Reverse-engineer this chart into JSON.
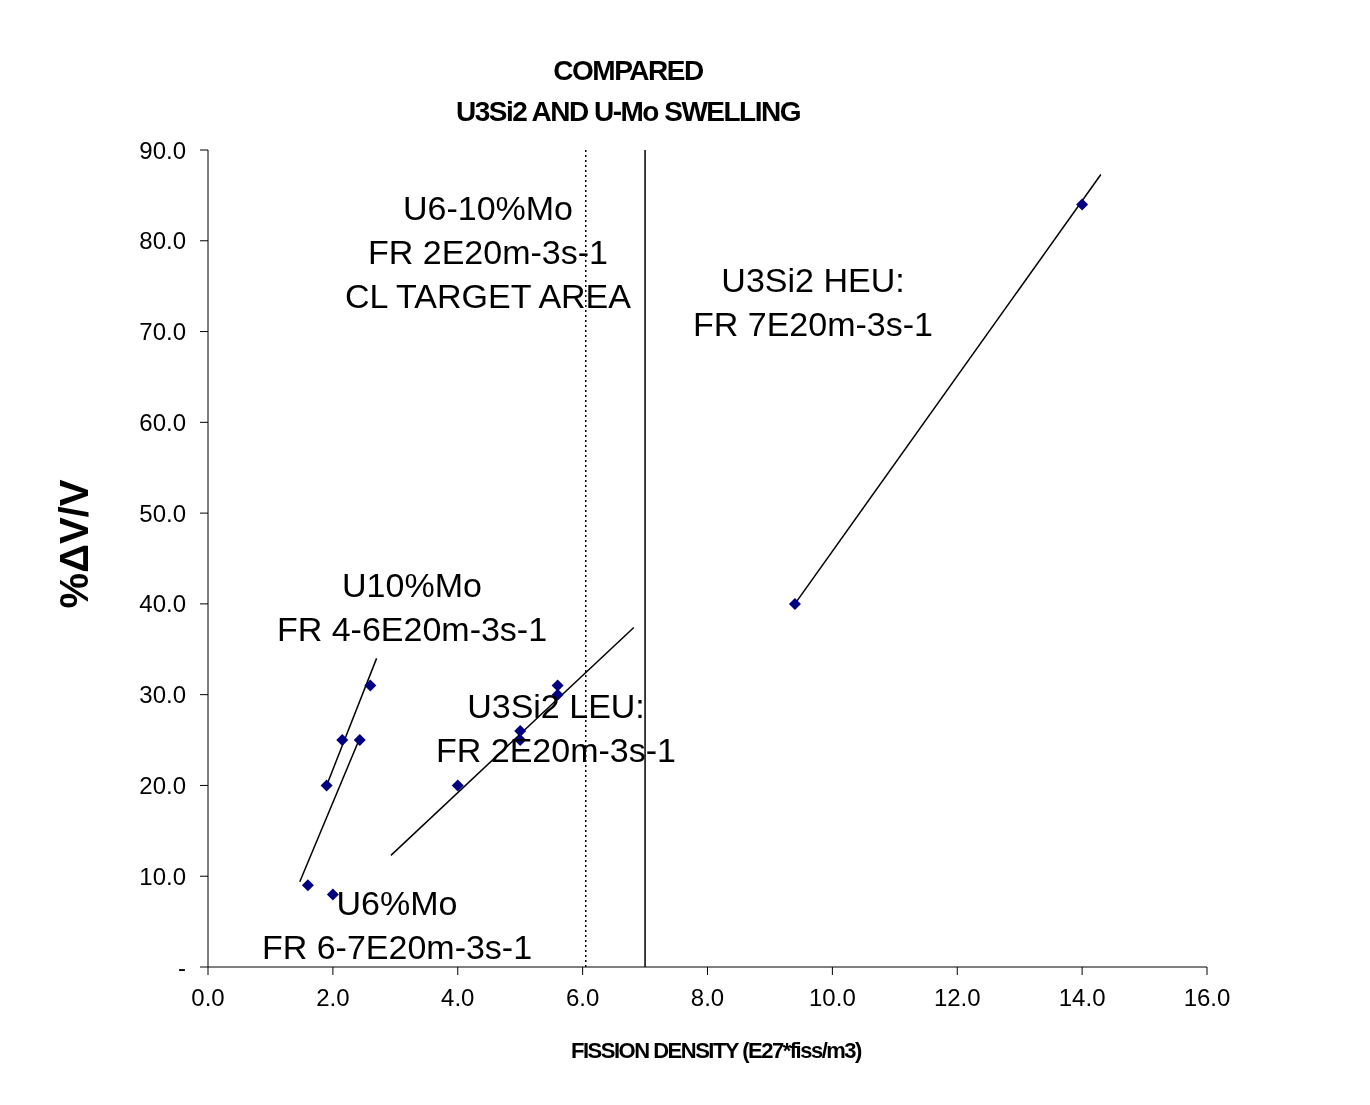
{
  "chart_data": {
    "type": "scatter",
    "title": "COMPARED",
    "subtitle": "U3Si2 AND U-Mo SWELLING",
    "xlabel": "FISSION DENSITY (E27*fiss/m3)",
    "ylabel": "%ΔV/V",
    "xlim": [
      0,
      16
    ],
    "xticks": [
      {
        "value": 0,
        "label": "0.0"
      },
      {
        "value": 2,
        "label": "2.0"
      },
      {
        "value": 4,
        "label": "4.0"
      },
      {
        "value": 6,
        "label": "6.0"
      },
      {
        "value": 8,
        "label": "8.0"
      },
      {
        "value": 10,
        "label": "10.0"
      },
      {
        "value": 12,
        "label": "12.0"
      },
      {
        "value": 14,
        "label": "14.0"
      },
      {
        "value": 16,
        "label": "16.0"
      }
    ],
    "ylim": [
      0,
      90
    ],
    "yticks": [
      {
        "value": 0,
        "label": "-"
      },
      {
        "value": 10,
        "label": "10.0"
      },
      {
        "value": 20,
        "label": "20.0"
      },
      {
        "value": 30,
        "label": "30.0"
      },
      {
        "value": 40,
        "label": "40.0"
      },
      {
        "value": 50,
        "label": "50.0"
      },
      {
        "value": 60,
        "label": "60.0"
      },
      {
        "value": 70,
        "label": "70.0"
      },
      {
        "value": 80,
        "label": "80.0"
      },
      {
        "value": 90,
        "label": "90.0"
      }
    ],
    "grid": false,
    "legend": false,
    "series": [
      {
        "type": "scatter",
        "color": "#000080",
        "marker": "diamond",
        "x": [
          1.6,
          2.0,
          1.9,
          2.15,
          2.43,
          2.6,
          4.0,
          5.0,
          5.0,
          5.6,
          5.6,
          9.4,
          14.0
        ],
        "values": [
          9,
          8,
          20,
          25,
          25,
          31,
          20,
          26,
          25,
          31,
          30,
          40,
          84
        ]
      },
      {
        "type": "line",
        "color": "#000000",
        "x": [
          1.9,
          2.7
        ],
        "values": [
          20,
          34
        ]
      },
      {
        "type": "line",
        "color": "#000000",
        "x": [
          1.47,
          2.43
        ],
        "values": [
          9.4,
          25.2
        ]
      },
      {
        "type": "line",
        "color": "#000000",
        "x": [
          2.93,
          6.82
        ],
        "values": [
          12.3,
          37.4
        ]
      },
      {
        "type": "line",
        "color": "#000000",
        "x": [
          9.4,
          14.3
        ],
        "values": [
          40,
          87.3
        ]
      }
    ],
    "ref_lines": [
      {
        "axis": "x",
        "value": 6.05,
        "color": "#000000",
        "line_style": "dotted"
      },
      {
        "axis": "x",
        "value": 7.0,
        "color": "#000000",
        "line_style": "solid"
      }
    ],
    "annotations": [
      "U6-10%Mo\nFR 2E20m-3s-1\nCL TARGET AREA",
      "U3Si2 HEU:\nFR 7E20m-3s-1",
      "U10%Mo\nFR 4-6E20m-3s-1",
      "U3Si2 LEU:\nFR 2E20m-3s-1",
      "U6%Mo\nFR 6-7E20m-3s-1"
    ]
  }
}
